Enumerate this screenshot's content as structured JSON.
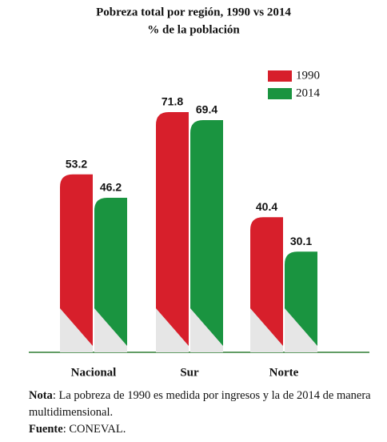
{
  "chart_data": {
    "type": "bar",
    "title": "Pobreza total por región, 1990 vs 2014",
    "subtitle": "% de la población",
    "categories": [
      "Nacional",
      "Sur",
      "Norte"
    ],
    "series": [
      {
        "name": "1990",
        "color": "#d71f2b",
        "values": [
          53.2,
          71.8,
          40.4
        ]
      },
      {
        "name": "2014",
        "color": "#1a9440",
        "values": [
          46.2,
          69.4,
          30.1
        ]
      }
    ],
    "legend": "top-right"
  },
  "note": {
    "label": "Nota",
    "text": ": La pobreza de 1990 es medida por ingresos y la de 2014 de manera multidimensional."
  },
  "source": {
    "label": "Fuente",
    "text": ": CONEVAL."
  }
}
